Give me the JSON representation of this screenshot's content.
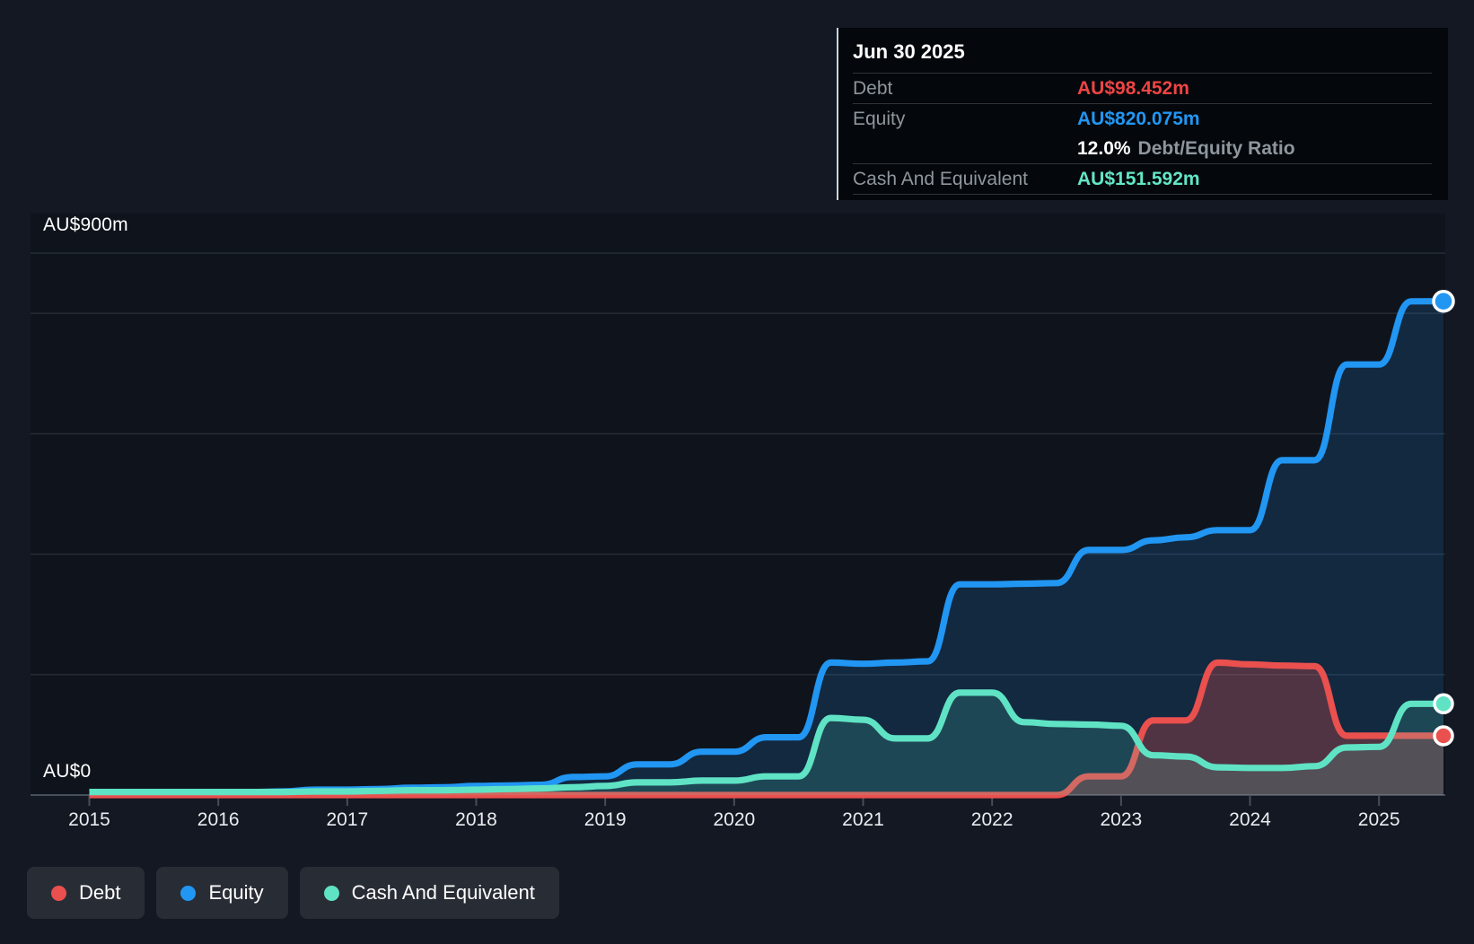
{
  "tooltip": {
    "title": "Jun 30 2025",
    "debt_label": "Debt",
    "debt_value": "AU$98.452m",
    "equity_label": "Equity",
    "equity_value": "AU$820.075m",
    "ratio_value": "12.0%",
    "ratio_label": "Debt/Equity Ratio",
    "cash_label": "Cash And Equivalent",
    "cash_value": "AU$151.592m"
  },
  "y_axis": {
    "top_label": "AU$900m",
    "zero_label": "AU$0"
  },
  "legend": {
    "items": [
      {
        "label": "Debt",
        "color": "#e9504e"
      },
      {
        "label": "Equity",
        "color": "#2196f3"
      },
      {
        "label": "Cash And Equivalent",
        "color": "#5fe3c4"
      }
    ]
  },
  "colors": {
    "page_bg": "#131822",
    "plot_bg": "#0f141c",
    "gridline": "#272e38",
    "axis_line": "#464e59",
    "debt": "#e9504e",
    "equity": "#2196f3",
    "cash": "#5fe3c4",
    "debt_fill": "rgba(229,80,77,0.30)",
    "equity_fill": "rgba(33,150,243,0.17)",
    "cash_fill": "rgba(95,228,196,0.16)",
    "tooltip_debt": "#ef4444",
    "tooltip_equity": "#2196f3",
    "tooltip_cash": "#63e6c6"
  },
  "chart_data": {
    "type": "area",
    "title": "",
    "xlabel": "",
    "ylabel": "AU$m",
    "x_start": 2015,
    "x_step": 0.25,
    "x_end": 2025.5,
    "x_ticks": [
      2015,
      2016,
      2017,
      2018,
      2019,
      2020,
      2021,
      2022,
      2023,
      2024,
      2025
    ],
    "ylim": [
      0,
      900
    ],
    "gridline_values": [
      900,
      800,
      600,
      400,
      200
    ],
    "grid": true,
    "legend_position": "bottom-left",
    "unit": "AU$ millions",
    "series": [
      {
        "name": "Equity",
        "color_key": "equity",
        "values": [
          4,
          4,
          4,
          4,
          5,
          5,
          6,
          9,
          9,
          10,
          12,
          13,
          15,
          16,
          17,
          30,
          31,
          51,
          51,
          72,
          72,
          96,
          96,
          220,
          218,
          220,
          222,
          350,
          350,
          351,
          352,
          407,
          407,
          423,
          428,
          440,
          440,
          556,
          556,
          715,
          715,
          820,
          820.075
        ]
      },
      {
        "name": "Debt",
        "color_key": "debt",
        "values": [
          0,
          0,
          0,
          0,
          0,
          0,
          0,
          0,
          0,
          0,
          0,
          0,
          0,
          0,
          0,
          0,
          0,
          0,
          0,
          0,
          0,
          0,
          0,
          0,
          0,
          0,
          0,
          0,
          0,
          0,
          0,
          31,
          31,
          124,
          124,
          220,
          217,
          215,
          214,
          98.5,
          98.5,
          98.5,
          98.452
        ]
      },
      {
        "name": "Cash And Equivalent",
        "color_key": "cash",
        "values": [
          5,
          5,
          5,
          5,
          5,
          5,
          5,
          6,
          6,
          7,
          8,
          8,
          9,
          10,
          11,
          13,
          15,
          21,
          21,
          24,
          24,
          31,
          31,
          128,
          125,
          94,
          94,
          170,
          170,
          121,
          118,
          117,
          115,
          66,
          64,
          46,
          45,
          45,
          48,
          79,
          80,
          151.6,
          151.592
        ]
      }
    ]
  }
}
